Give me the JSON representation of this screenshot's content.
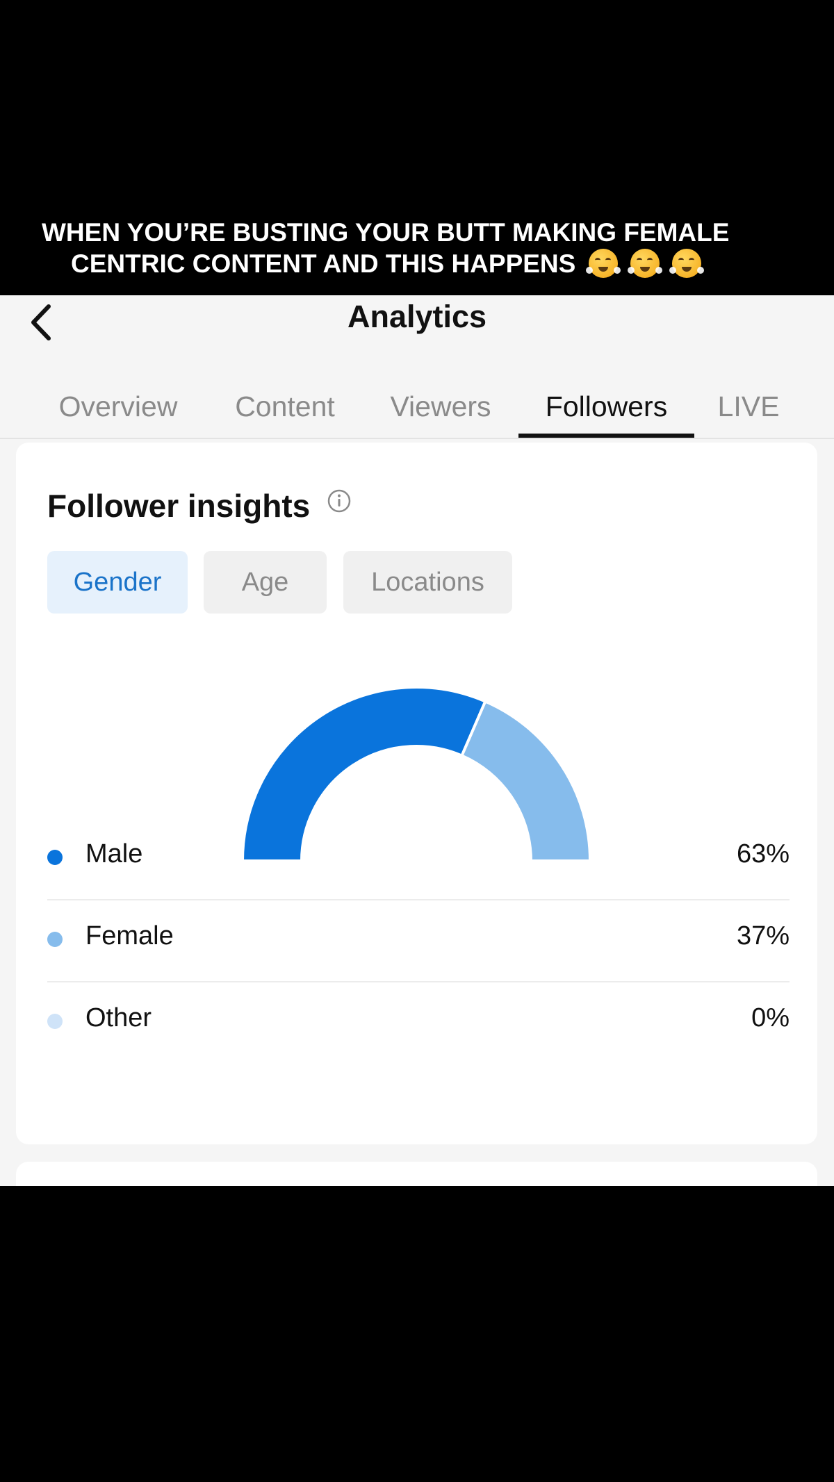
{
  "caption": {
    "line1": "WHEN YOU’RE BUSTING YOUR BUTT MAKING FEMALE",
    "line2": "CENTRIC CONTENT AND THIS HAPPENS",
    "emoji": [
      "face-with-steam-from-nose",
      "face-with-steam-from-nose",
      "face-with-steam-from-nose"
    ]
  },
  "header": {
    "title": "Analytics",
    "back_icon": "chevron-left-icon"
  },
  "tabs": [
    {
      "label": "Overview",
      "active": false
    },
    {
      "label": "Content",
      "active": false
    },
    {
      "label": "Viewers",
      "active": false
    },
    {
      "label": "Followers",
      "active": true
    },
    {
      "label": "LIVE",
      "active": false
    }
  ],
  "insights": {
    "title": "Follower insights",
    "info_icon": "info-icon",
    "segments": [
      {
        "label": "Gender",
        "active": true
      },
      {
        "label": "Age",
        "active": false
      },
      {
        "label": "Locations",
        "active": false
      }
    ]
  },
  "chart_data": {
    "type": "pie",
    "categories": [
      "Male",
      "Female",
      "Other"
    ],
    "values": [
      63,
      37,
      0
    ],
    "display_values": [
      "63%",
      "37%",
      "0%"
    ],
    "colors": [
      "#0a74dc",
      "#86bcec",
      "#cfe3f8"
    ]
  },
  "colors": {
    "accent": "#1a73c9",
    "male": "#0a74dc",
    "female": "#86bcec",
    "other": "#cfe3f8"
  }
}
